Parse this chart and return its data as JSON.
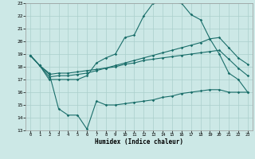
{
  "xlabel": "Humidex (Indice chaleur)",
  "bg_color": "#cce8e6",
  "grid_color": "#aacfcc",
  "line_color": "#1a6e6a",
  "xlim_min": -0.5,
  "xlim_max": 23.5,
  "ylim_min": 13,
  "ylim_max": 23,
  "xticks": [
    0,
    1,
    2,
    3,
    4,
    5,
    6,
    7,
    8,
    9,
    10,
    11,
    12,
    13,
    14,
    15,
    16,
    17,
    18,
    19,
    20,
    21,
    22,
    23
  ],
  "yticks": [
    13,
    14,
    15,
    16,
    17,
    18,
    19,
    20,
    21,
    22,
    23
  ],
  "line1_x": [
    0,
    1,
    2,
    3,
    4,
    5,
    6,
    7,
    8,
    9,
    10,
    11,
    12,
    13,
    14,
    15,
    16,
    17,
    18,
    19,
    20,
    21,
    22,
    23
  ],
  "line1_y": [
    18.9,
    18.1,
    17.0,
    17.0,
    17.0,
    17.0,
    17.3,
    18.3,
    18.7,
    19.0,
    20.3,
    20.5,
    22.0,
    23.0,
    23.1,
    23.1,
    23.0,
    22.1,
    21.7,
    20.2,
    19.0,
    17.5,
    17.0,
    16.0
  ],
  "line2_x": [
    0,
    1,
    2,
    3,
    4,
    5,
    6,
    7,
    8,
    9,
    10,
    11,
    12,
    13,
    14,
    15,
    16,
    17,
    18,
    19,
    20,
    21,
    22,
    23
  ],
  "line2_y": [
    18.9,
    18.1,
    17.2,
    17.3,
    17.3,
    17.4,
    17.5,
    17.7,
    17.9,
    18.1,
    18.3,
    18.5,
    18.7,
    18.9,
    19.1,
    19.3,
    19.5,
    19.7,
    19.9,
    20.2,
    20.3,
    19.5,
    18.7,
    18.2
  ],
  "line3_x": [
    0,
    1,
    2,
    3,
    4,
    5,
    6,
    7,
    8,
    9,
    10,
    11,
    12,
    13,
    14,
    15,
    16,
    17,
    18,
    19,
    20,
    21,
    22,
    23
  ],
  "line3_y": [
    18.9,
    18.1,
    17.4,
    17.5,
    17.5,
    17.6,
    17.7,
    17.8,
    17.9,
    18.0,
    18.2,
    18.3,
    18.5,
    18.6,
    18.7,
    18.8,
    18.9,
    19.0,
    19.1,
    19.2,
    19.3,
    18.6,
    17.9,
    17.3
  ],
  "line4_x": [
    0,
    1,
    2,
    3,
    4,
    5,
    6,
    7,
    8,
    9,
    10,
    11,
    12,
    13,
    14,
    15,
    16,
    17,
    18,
    19,
    20,
    21,
    22,
    23
  ],
  "line4_y": [
    18.9,
    18.1,
    17.5,
    14.7,
    14.2,
    14.2,
    13.1,
    15.3,
    15.0,
    15.0,
    15.1,
    15.2,
    15.3,
    15.4,
    15.6,
    15.7,
    15.9,
    16.0,
    16.1,
    16.2,
    16.2,
    16.0,
    16.0,
    16.0
  ]
}
